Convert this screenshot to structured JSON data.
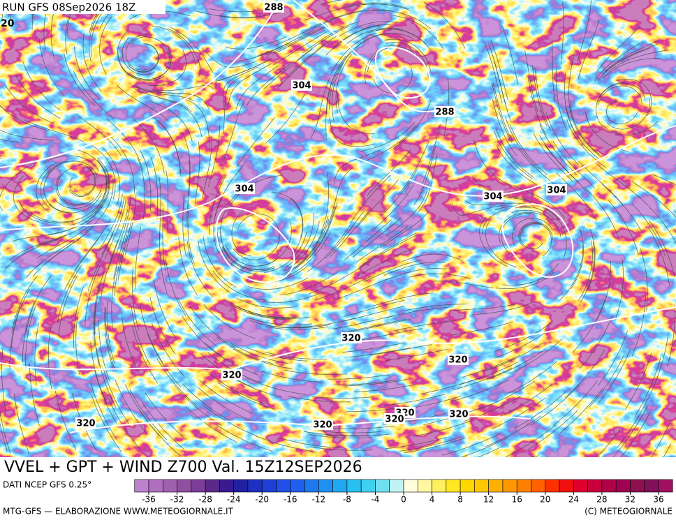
{
  "header": {
    "run": "RUN GFS 08Sep2026 18Z",
    "corner_label": "20"
  },
  "contour_labels": [
    288,
    288,
    304,
    304,
    304,
    304,
    320,
    320,
    320,
    320,
    320,
    320,
    320,
    320
  ],
  "title": "VVEL + GPT + WIND Z700 Val. 15Z12SEP2026",
  "legend": {
    "source": "DATI NCEP GFS 0.25°",
    "colors": [
      "#c080d0",
      "#b070c0",
      "#a060b0",
      "#9050a0",
      "#7a3e98",
      "#5a2a8a",
      "#3a1a90",
      "#2020a0",
      "#1e30c0",
      "#1e40d8",
      "#2050e8",
      "#2060f0",
      "#1e78f0",
      "#2090f0",
      "#20a8f0",
      "#28c0f0",
      "#40d0f0",
      "#70e0f0",
      "#c0f4f4",
      "#ffffe0",
      "#fff8a0",
      "#fff060",
      "#ffe820",
      "#ffd800",
      "#ffc800",
      "#ffb000",
      "#ff9800",
      "#ff8000",
      "#ff6000",
      "#ff3000",
      "#f01010",
      "#e00030",
      "#c8003c",
      "#b00048",
      "#a00050",
      "#901050",
      "#801058",
      "#a01060"
    ],
    "ticks": [
      -36,
      -32,
      -28,
      -24,
      -20,
      -16,
      -12,
      -8,
      -4,
      0,
      4,
      8,
      12,
      16,
      20,
      24,
      28,
      32,
      36
    ]
  },
  "footer": {
    "credit": "MTG-GFS — ELABORAZIONE WWW.METEOGIORNALE.IT",
    "copyright": "(C) METEOGIORNALE"
  }
}
